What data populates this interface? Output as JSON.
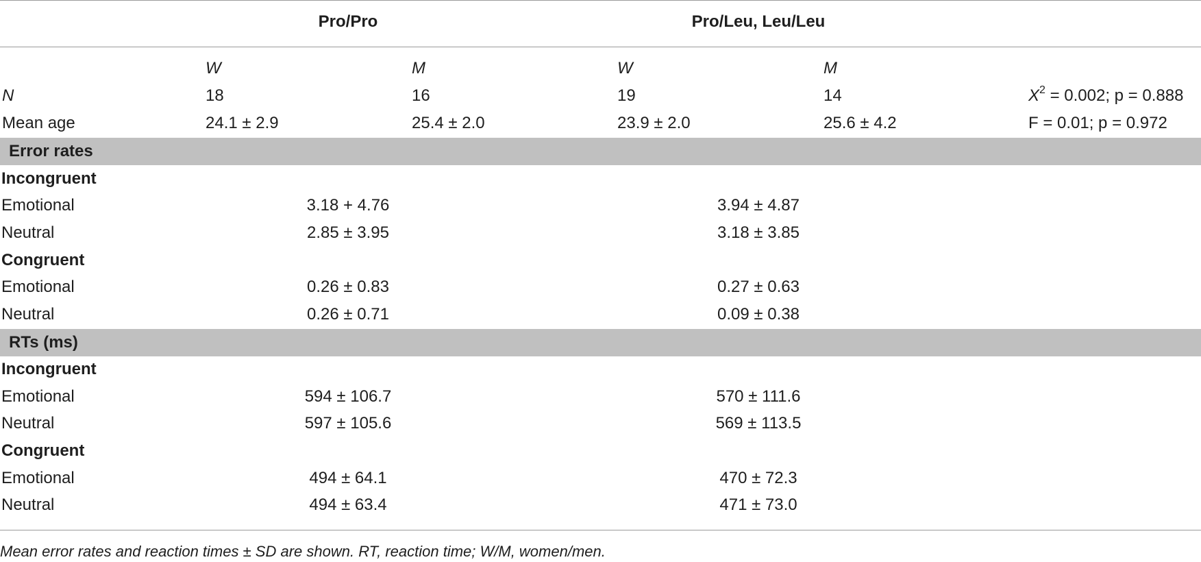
{
  "header": {
    "group1": "Pro/Pro",
    "group2": "Pro/Leu, Leu/Leu",
    "sub": [
      "W",
      "M",
      "W",
      "M"
    ]
  },
  "demographics": {
    "n_row": {
      "label": "N",
      "values": [
        "18",
        "16",
        "19",
        "14"
      ],
      "stat_prefix": "X",
      "stat_sup": "2",
      "stat_rest": " = 0.002; p = 0.888"
    },
    "age_row": {
      "label": "Mean age",
      "values": [
        "24.1 ± 2.9",
        "25.4 ± 2.0",
        "23.9 ± 2.0",
        "25.6 ± 4.2"
      ],
      "stat": "F = 0.01; p = 0.972"
    }
  },
  "error_rates": {
    "title": "Error rates",
    "incongruent": {
      "label": "Incongruent",
      "rows": [
        {
          "label": "Emotional",
          "g1": "3.18 + 4.76",
          "g2": "3.94 ± 4.87"
        },
        {
          "label": "Neutral",
          "g1": "2.85 ± 3.95",
          "g2": "3.18 ± 3.85"
        }
      ]
    },
    "congruent": {
      "label": "Congruent",
      "rows": [
        {
          "label": "Emotional",
          "g1": "0.26 ± 0.83",
          "g2": "0.27 ± 0.63"
        },
        {
          "label": "Neutral",
          "g1": "0.26 ± 0.71",
          "g2": "0.09 ± 0.38"
        }
      ]
    }
  },
  "rts": {
    "title": "RTs (ms)",
    "incongruent": {
      "label": "Incongruent",
      "rows": [
        {
          "label": "Emotional",
          "g1": "594 ± 106.7",
          "g2": "570 ± 111.6"
        },
        {
          "label": "Neutral",
          "g1": "597 ± 105.6",
          "g2": "569 ± 113.5"
        }
      ]
    },
    "congruent": {
      "label": "Congruent",
      "rows": [
        {
          "label": "Emotional",
          "g1": "494 ± 64.1",
          "g2": "470 ± 72.3"
        },
        {
          "label": "Neutral",
          "g1": "494 ± 63.4",
          "g2": "471 ± 73.0"
        }
      ]
    }
  },
  "caption": "Mean error rates and reaction times ± SD are shown. RT, reaction time; W/M, women/men."
}
